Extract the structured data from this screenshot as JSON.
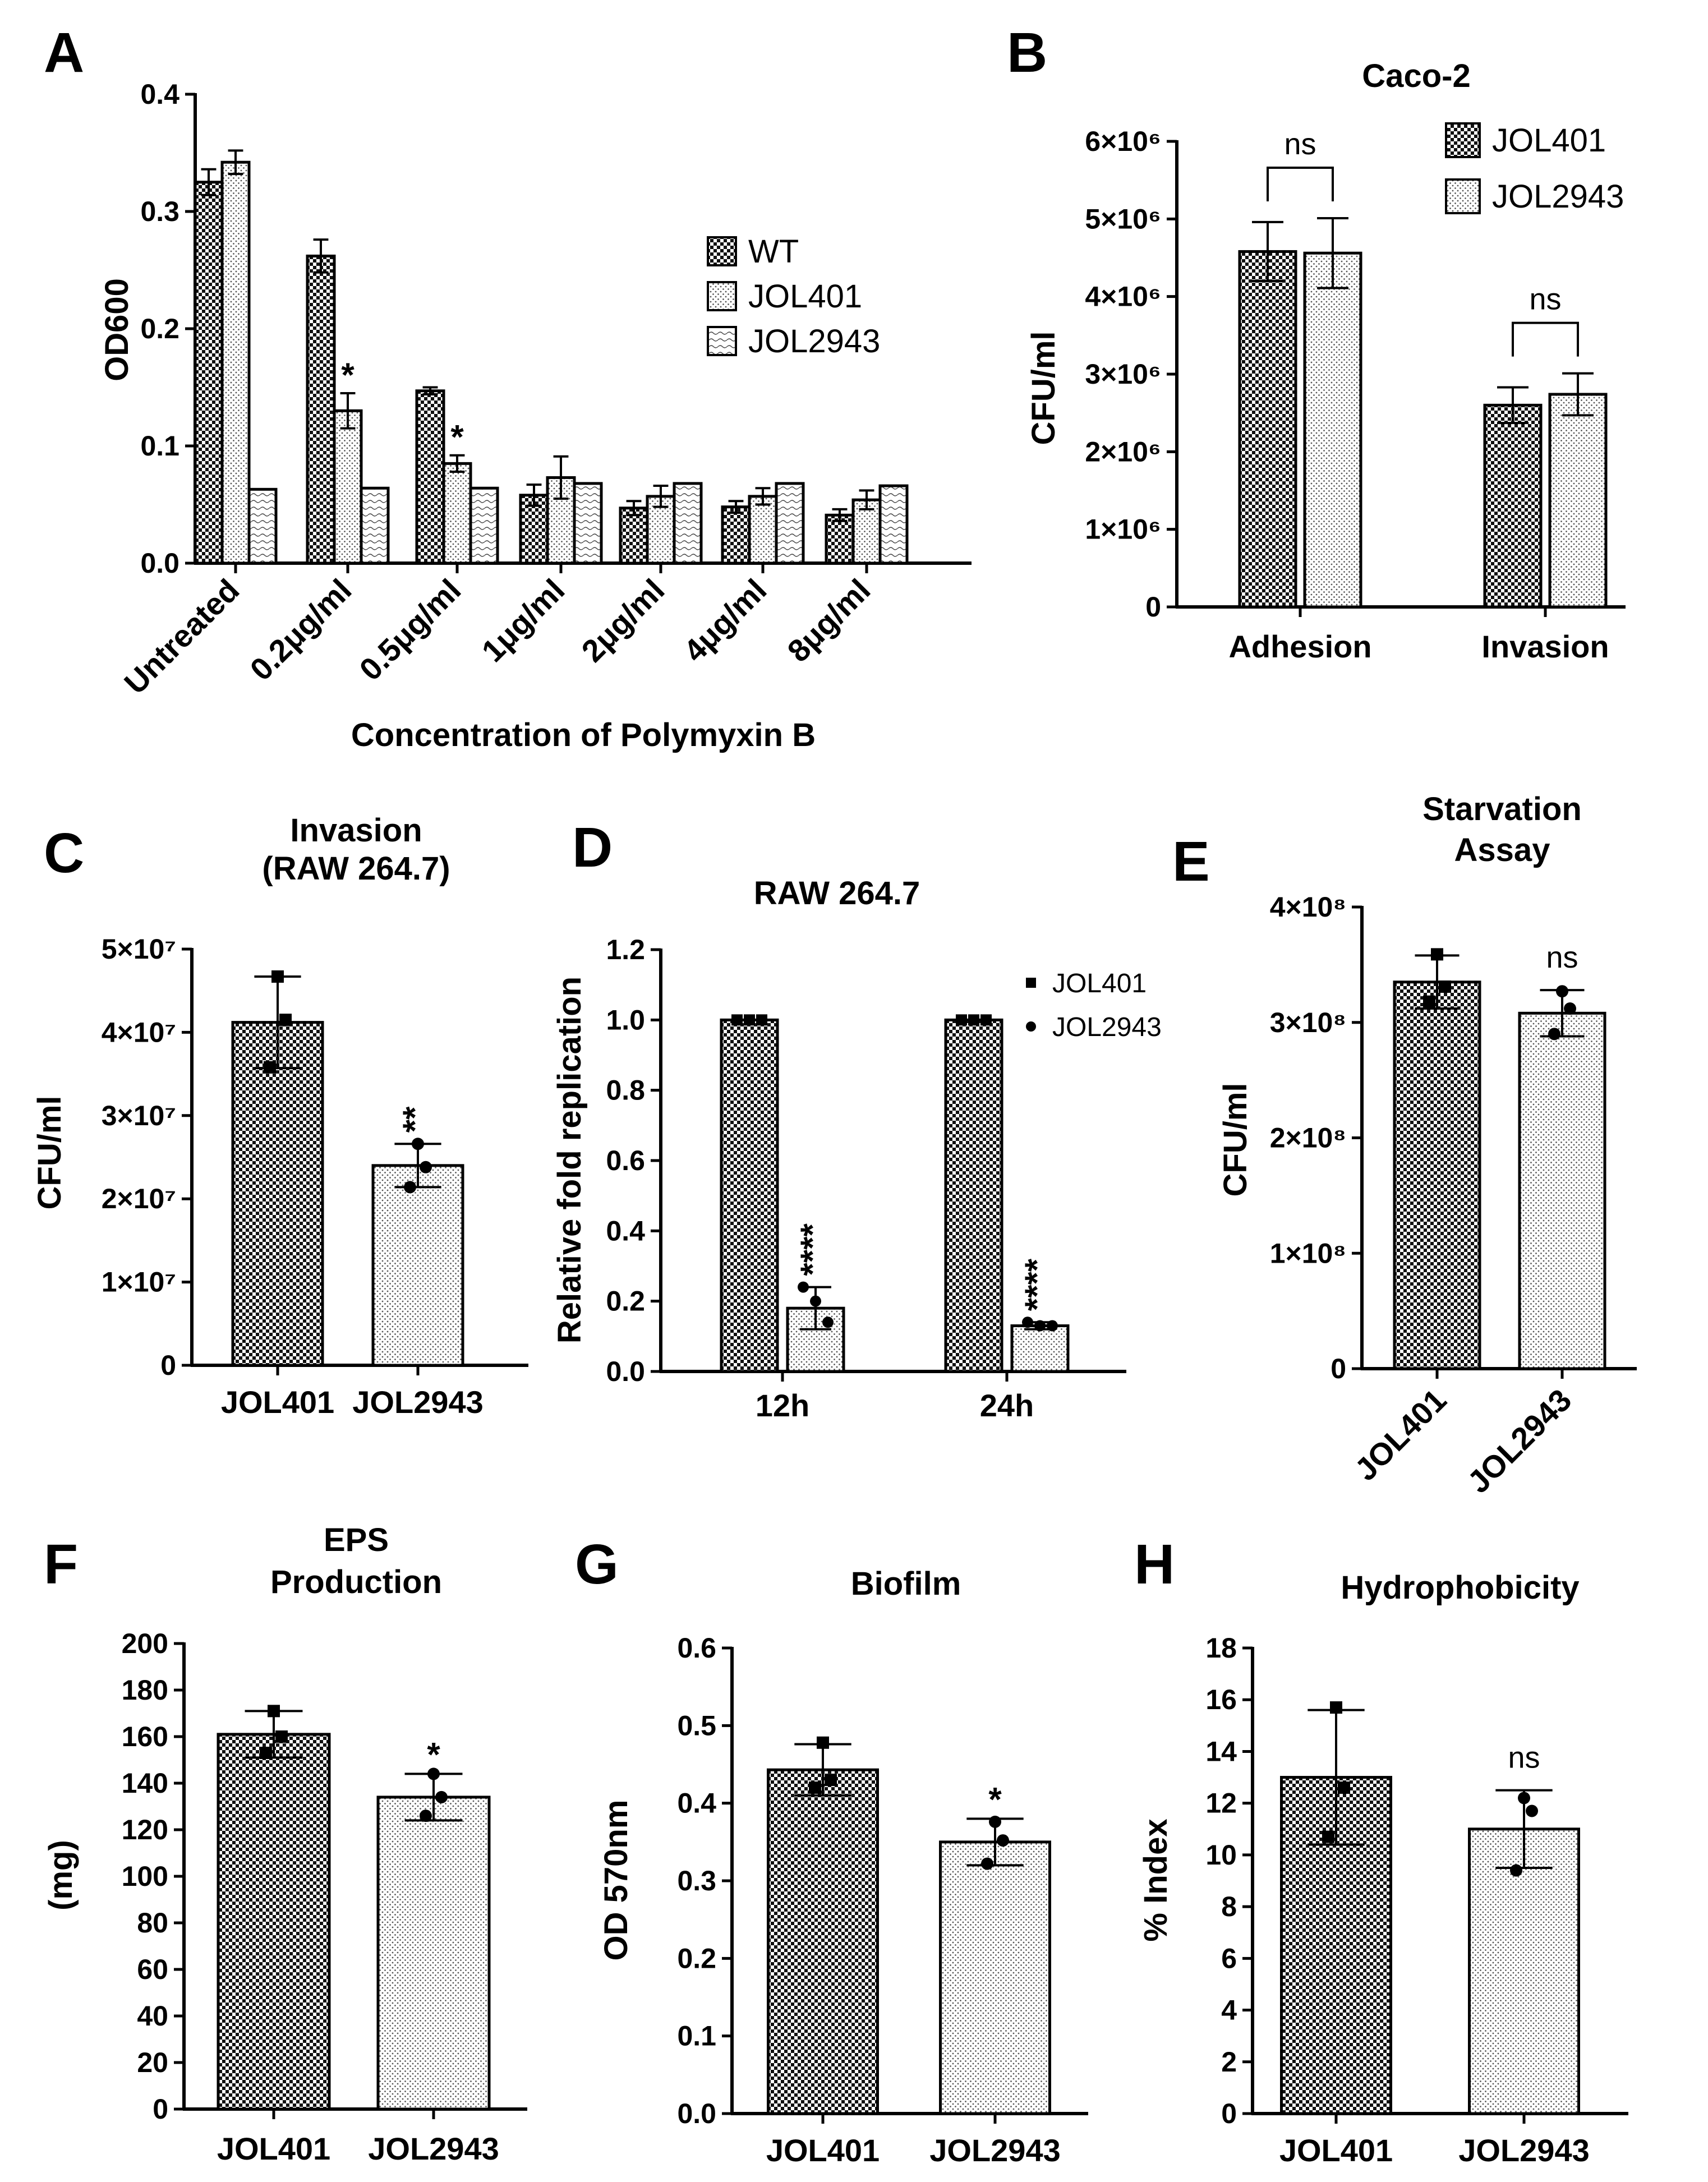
{
  "colors": {
    "ink": "#000000",
    "background": "#ffffff"
  },
  "chart_data": [
    {
      "id": "A",
      "panel_label": "A",
      "type": "bar",
      "title": "",
      "xlabel": "Concentration of Polymyxin B",
      "ylabel": "OD600",
      "ylim": [
        0,
        0.4
      ],
      "yticks": [
        0,
        0.1,
        0.2,
        0.3,
        0.4
      ],
      "ytick_labels": [
        "0.0",
        "0.1",
        "0.2",
        "0.3",
        "0.4"
      ],
      "categories": [
        "Untreated",
        "0.2μg/ml",
        "0.5μg/ml",
        "1μg/ml",
        "2μg/ml",
        "4μg/ml",
        "8μg/ml"
      ],
      "series": [
        {
          "name": "WT",
          "pattern": "checker",
          "values": [
            0.325,
            0.262,
            0.147,
            0.058,
            0.047,
            0.048,
            0.041
          ],
          "errors": [
            0.011,
            0.014,
            0.003,
            0.009,
            0.006,
            0.005,
            0.005
          ]
        },
        {
          "name": "JOL401",
          "pattern": "dots",
          "values": [
            0.342,
            0.13,
            0.085,
            0.073,
            0.057,
            0.057,
            0.054
          ],
          "errors": [
            0.01,
            0.015,
            0.007,
            0.018,
            0.009,
            0.007,
            0.008
          ]
        },
        {
          "name": "JOL2943",
          "pattern": "waves",
          "values": [
            0.063,
            0.064,
            0.064,
            0.068,
            0.068,
            0.068,
            0.066
          ],
          "errors": [
            0,
            0,
            0,
            0,
            0,
            0,
            0
          ]
        }
      ],
      "annotations": [
        {
          "text": "*",
          "category": 1,
          "series": 1
        },
        {
          "text": "*",
          "category": 2,
          "series": 1
        }
      ],
      "legend": "right"
    },
    {
      "id": "B",
      "panel_label": "B",
      "type": "bar",
      "title": "Caco-2",
      "xlabel": "",
      "ylabel": "CFU/ml",
      "ylim": [
        0,
        6000000
      ],
      "yticks": [
        0,
        1000000,
        2000000,
        3000000,
        4000000,
        5000000,
        6000000
      ],
      "ytick_labels": [
        "0",
        "1×10⁶",
        "2×10⁶",
        "3×10⁶",
        "4×10⁶",
        "5×10⁶",
        "6×10⁶"
      ],
      "categories": [
        "Adhesion",
        "Invasion"
      ],
      "series": [
        {
          "name": "JOL401",
          "pattern": "checker",
          "values": [
            4580000,
            2600000
          ],
          "errors": [
            380000,
            230000
          ]
        },
        {
          "name": "JOL2943",
          "pattern": "dots",
          "values": [
            4560000,
            2740000
          ],
          "errors": [
            450000,
            270000
          ]
        }
      ],
      "significance": [
        {
          "text": "ns",
          "category": 0
        },
        {
          "text": "ns",
          "category": 1
        }
      ],
      "legend": "top-right"
    },
    {
      "id": "C",
      "panel_label": "C",
      "type": "bar",
      "title": "Invasion",
      "subtitle": "(RAW 264.7)",
      "xlabel": "",
      "ylabel": "CFU/ml",
      "ylim": [
        0,
        50000000
      ],
      "yticks": [
        0,
        10000000,
        20000000,
        30000000,
        40000000,
        50000000
      ],
      "ytick_labels": [
        "0",
        "1×10⁷",
        "2×10⁷",
        "3×10⁷",
        "4×10⁷",
        "5×10⁷"
      ],
      "categories": [
        "JOL401",
        "JOL2943"
      ],
      "patterns": [
        "checker",
        "dots"
      ],
      "values": [
        41200000,
        24000000
      ],
      "errors": [
        5500000,
        2600000
      ],
      "points": [
        [
          46700000,
          41500000,
          35800000
        ],
        [
          26600000,
          23800000,
          21400000
        ]
      ],
      "markers": [
        "square",
        "circle"
      ],
      "annotations": [
        {
          "text": "**",
          "category": 1
        }
      ]
    },
    {
      "id": "D",
      "panel_label": "D",
      "type": "bar",
      "title": "RAW 264.7",
      "xlabel": "",
      "ylabel": "Relative fold replication",
      "ylim": [
        0,
        1.2
      ],
      "yticks": [
        0,
        0.2,
        0.4,
        0.6,
        0.8,
        1.0,
        1.2
      ],
      "ytick_labels": [
        "0.0",
        "0.2",
        "0.4",
        "0.6",
        "0.8",
        "1.0",
        "1.2"
      ],
      "categories": [
        "12h",
        "24h"
      ],
      "series": [
        {
          "name": "JOL401",
          "pattern": "checker",
          "marker": "square",
          "values": [
            1.0,
            1.0
          ],
          "errors": [
            0,
            0
          ],
          "points": [
            [
              1.0,
              1.0,
              1.0
            ],
            [
              1.0,
              1.0,
              1.0
            ]
          ]
        },
        {
          "name": "JOL2943",
          "pattern": "dots",
          "marker": "circle",
          "values": [
            0.18,
            0.13
          ],
          "errors": [
            0.06,
            0.01
          ],
          "points": [
            [
              0.24,
              0.2,
              0.14
            ],
            [
              0.14,
              0.13,
              0.13
            ]
          ]
        }
      ],
      "annotations": [
        {
          "text": "****",
          "category": 0
        },
        {
          "text": "****",
          "category": 1
        }
      ],
      "legend": "top-right"
    },
    {
      "id": "E",
      "panel_label": "E",
      "type": "bar",
      "title": "Starvation",
      "subtitle": "Assay",
      "xlabel": "",
      "ylabel": "CFU/ml",
      "ylim": [
        0,
        400000000
      ],
      "yticks": [
        0,
        100000000,
        200000000,
        300000000,
        400000000
      ],
      "ytick_labels": [
        "0",
        "1×10⁸",
        "2×10⁸",
        "3×10⁸",
        "4×10⁸"
      ],
      "categories": [
        "JOL401",
        "JOL2943"
      ],
      "patterns": [
        "checker",
        "dots"
      ],
      "values": [
        335000000,
        308000000
      ],
      "errors": [
        23000000,
        20000000
      ],
      "points": [
        [
          359000000,
          331000000,
          318000000
        ],
        [
          327000000,
          312000000,
          290000000
        ]
      ],
      "markers": [
        "square",
        "circle"
      ],
      "annotations": [
        {
          "text": "ns",
          "category": 1
        }
      ]
    },
    {
      "id": "F",
      "panel_label": "F",
      "type": "bar",
      "title": "EPS",
      "subtitle": "Production",
      "xlabel": "",
      "ylabel": "(mg)",
      "ylim": [
        0,
        200
      ],
      "yticks": [
        0,
        20,
        40,
        60,
        80,
        100,
        120,
        140,
        160,
        180,
        200
      ],
      "ytick_labels": [
        "0",
        "20",
        "40",
        "60",
        "80",
        "100",
        "120",
        "140",
        "160",
        "180",
        "200"
      ],
      "categories": [
        "JOL401",
        "JOL2943"
      ],
      "patterns": [
        "checker",
        "dots"
      ],
      "values": [
        161,
        134
      ],
      "errors": [
        10,
        10
      ],
      "points": [
        [
          171,
          160,
          153
        ],
        [
          144,
          134,
          126
        ]
      ],
      "markers": [
        "square",
        "circle"
      ],
      "annotations": [
        {
          "text": "*",
          "category": 1
        }
      ]
    },
    {
      "id": "G",
      "panel_label": "G",
      "type": "bar",
      "title": "Biofilm",
      "xlabel": "",
      "ylabel": "OD 570nm",
      "ylim": [
        0,
        0.6
      ],
      "yticks": [
        0,
        0.1,
        0.2,
        0.3,
        0.4,
        0.5,
        0.6
      ],
      "ytick_labels": [
        "0.0",
        "0.1",
        "0.2",
        "0.3",
        "0.4",
        "0.5",
        "0.6"
      ],
      "categories": [
        "JOL401",
        "JOL2943"
      ],
      "patterns": [
        "checker",
        "dots"
      ],
      "values": [
        0.443,
        0.35
      ],
      "errors": [
        0.033,
        0.03
      ],
      "points": [
        [
          0.478,
          0.43,
          0.42
        ],
        [
          0.376,
          0.352,
          0.322
        ]
      ],
      "markers": [
        "square",
        "circle"
      ],
      "annotations": [
        {
          "text": "*",
          "category": 1
        }
      ]
    },
    {
      "id": "H",
      "panel_label": "H",
      "type": "bar",
      "title": "Hydrophobicity",
      "xlabel": "",
      "ylabel": "% Index",
      "ylim": [
        0,
        18
      ],
      "yticks": [
        0,
        2,
        4,
        6,
        8,
        10,
        12,
        14,
        16,
        18
      ],
      "ytick_labels": [
        "0",
        "2",
        "4",
        "6",
        "8",
        "10",
        "12",
        "14",
        "16",
        "18"
      ],
      "categories": [
        "JOL401",
        "JOL2943"
      ],
      "patterns": [
        "checker",
        "dots"
      ],
      "values": [
        13.0,
        11.0
      ],
      "errors": [
        2.6,
        1.5
      ],
      "points": [
        [
          15.7,
          12.6,
          10.7
        ],
        [
          12.2,
          11.7,
          9.4
        ]
      ],
      "markers": [
        "square",
        "circle"
      ],
      "annotations": [
        {
          "text": "ns",
          "category": 1
        }
      ]
    }
  ]
}
